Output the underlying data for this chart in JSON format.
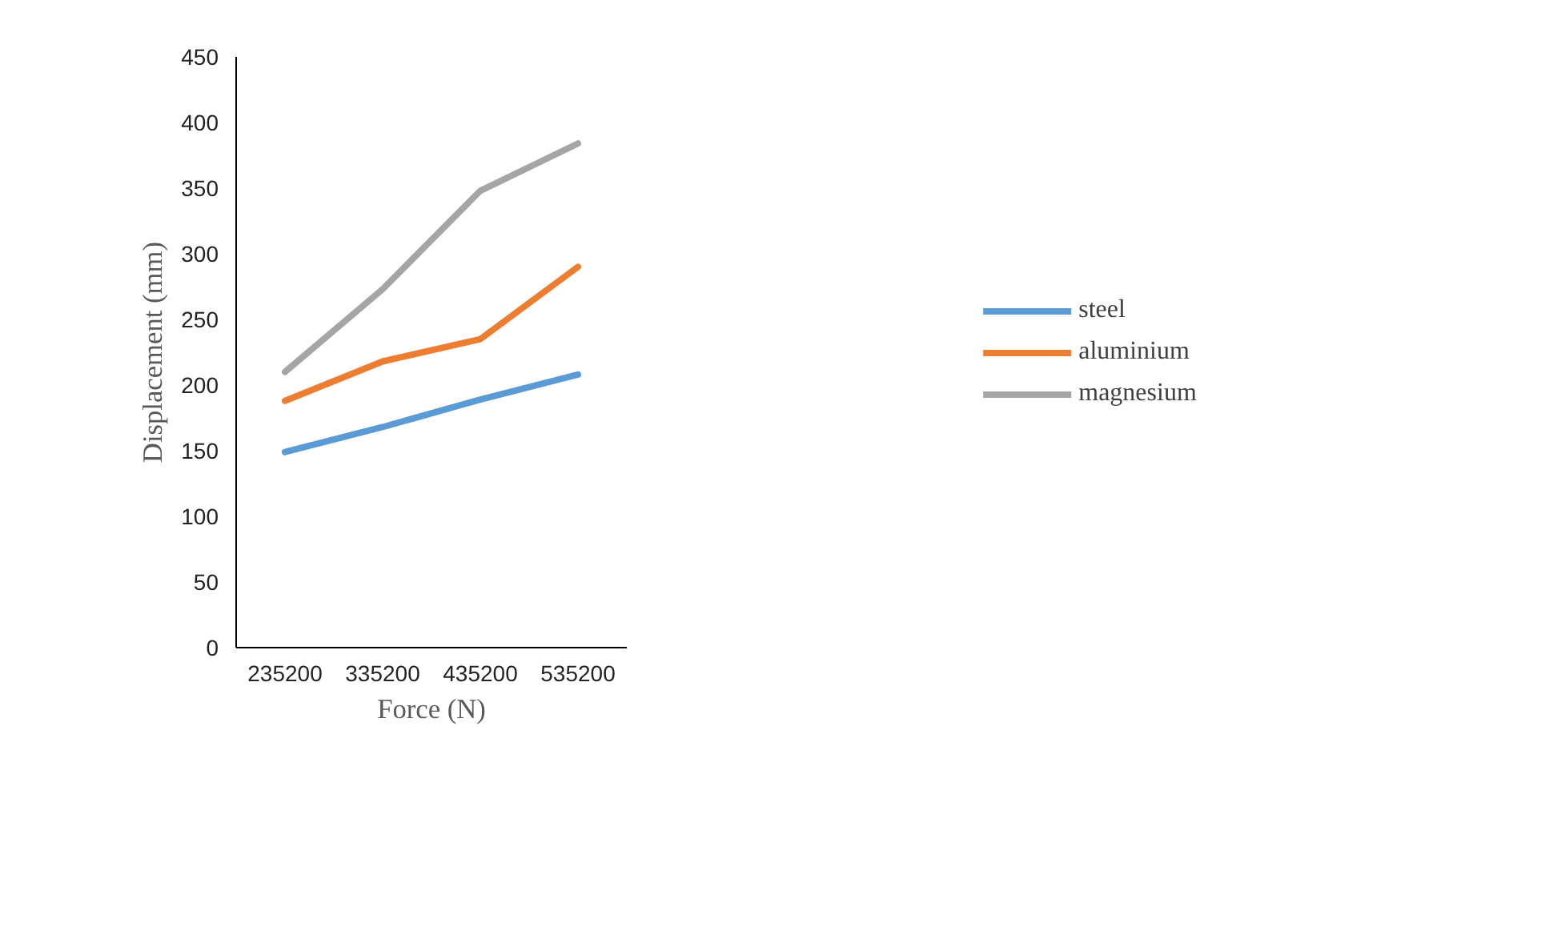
{
  "chart_data": {
    "type": "line",
    "xlabel": "Force (N)",
    "ylabel": "Displacement (mm)",
    "categories": [
      "235200",
      "335200",
      "435200",
      "535200"
    ],
    "series": [
      {
        "name": "steel",
        "color": "#5b9bd5",
        "values": [
          149,
          168,
          189,
          208
        ]
      },
      {
        "name": "aluminium",
        "color": "#ed7d31",
        "values": [
          188,
          218,
          235,
          290
        ]
      },
      {
        "name": "magnesium",
        "color": "#a5a5a5",
        "values": [
          210,
          273,
          348,
          384
        ]
      }
    ],
    "ylim": [
      0,
      450
    ],
    "yticks": [
      0,
      50,
      100,
      150,
      200,
      250,
      300,
      350,
      400,
      450
    ],
    "grid": false,
    "legend": "right",
    "marker": "none",
    "line_style": "solid"
  }
}
